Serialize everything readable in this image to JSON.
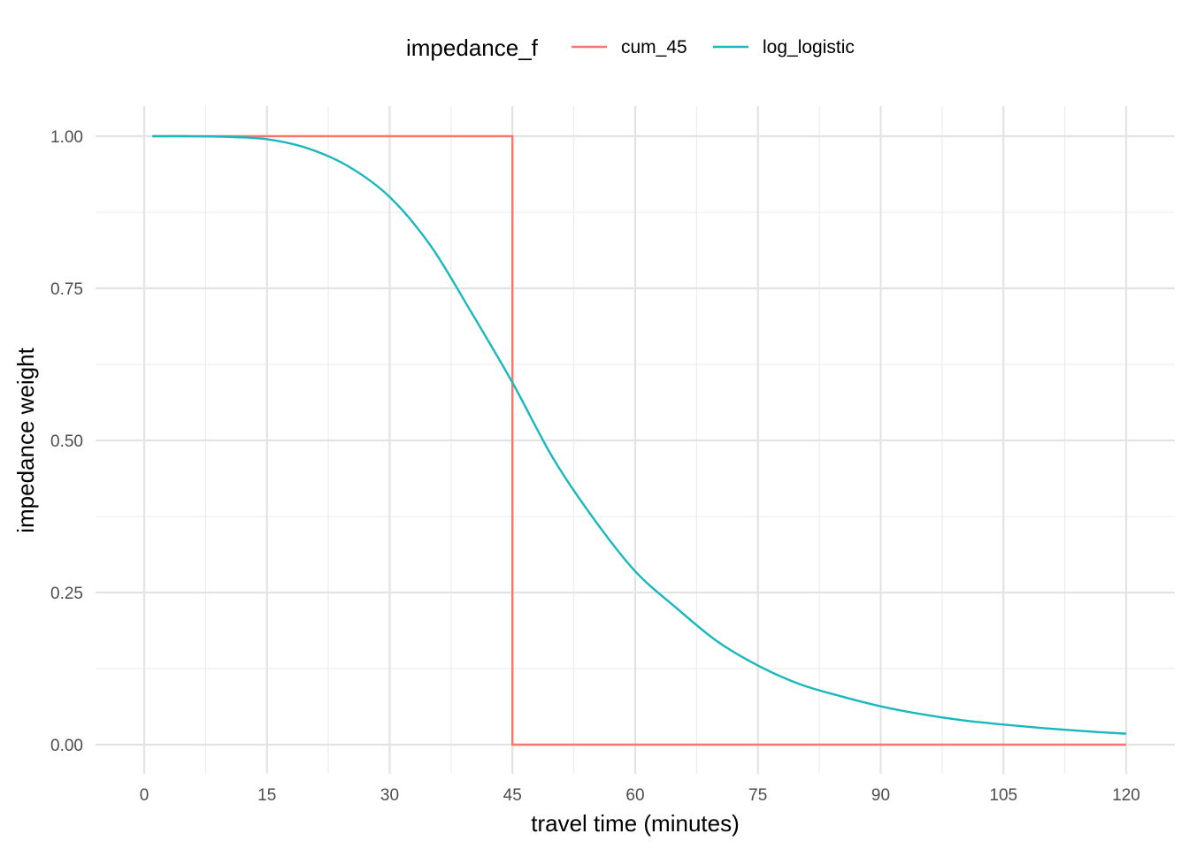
{
  "chart_data": {
    "type": "line",
    "title": "",
    "xlabel": "travel time (minutes)",
    "ylabel": "impedance weight",
    "xlim": [
      0,
      120
    ],
    "ylim": [
      0,
      1
    ],
    "x_ticks": [
      0,
      15,
      30,
      45,
      60,
      75,
      90,
      105,
      120
    ],
    "x_tick_labels": [
      "0",
      "15",
      "30",
      "45",
      "60",
      "75",
      "90",
      "105",
      "120"
    ],
    "y_ticks": [
      0,
      0.25,
      0.5,
      0.75,
      1.0
    ],
    "y_tick_labels": [
      "0.00",
      "0.25",
      "0.50",
      "0.75",
      "1.00"
    ],
    "grid": true,
    "legend": {
      "title": "impedance_f",
      "position": "top"
    },
    "series": [
      {
        "name": "cum_45",
        "color": "#f8766d",
        "x": [
          1,
          45,
          45,
          120
        ],
        "y": [
          1,
          1,
          0,
          0
        ]
      },
      {
        "name": "log_logistic",
        "color": "#19b8bd",
        "x": [
          1,
          5,
          10,
          15,
          20,
          25,
          30,
          35,
          40,
          45,
          50,
          55,
          60,
          65,
          70,
          75,
          80,
          85,
          90,
          95,
          100,
          105,
          110,
          115,
          120
        ],
        "y": [
          1.0,
          1.0,
          0.999,
          0.995,
          0.98,
          0.95,
          0.9,
          0.82,
          0.71,
          0.595,
          0.47,
          0.37,
          0.285,
          0.225,
          0.17,
          0.13,
          0.1,
          0.08,
          0.063,
          0.05,
          0.04,
          0.033,
          0.027,
          0.022,
          0.018
        ]
      }
    ]
  }
}
